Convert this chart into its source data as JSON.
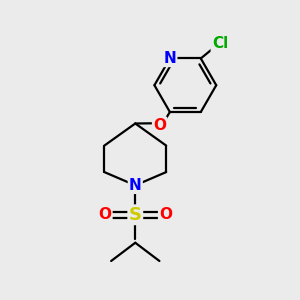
{
  "background_color": "#ebebeb",
  "bond_color": "#000000",
  "bond_width": 1.6,
  "atom_colors": {
    "N": "#0000ff",
    "O": "#ff0000",
    "S": "#cccc00",
    "Cl": "#00aa00",
    "C": "#000000"
  },
  "figsize": [
    3.0,
    3.0
  ],
  "dpi": 100,
  "xlim": [
    0,
    10
  ],
  "ylim": [
    0,
    10
  ]
}
